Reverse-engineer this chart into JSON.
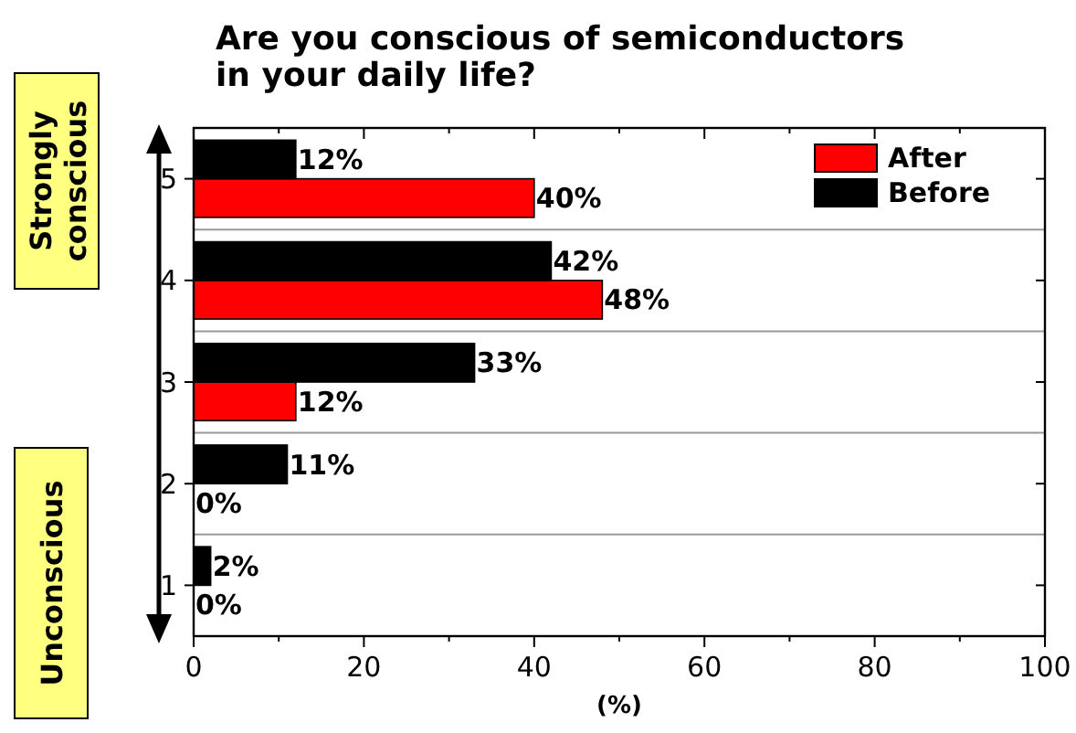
{
  "chart_data": {
    "type": "bar",
    "orientation": "horizontal",
    "title": "Are you conscious of semiconductors in your daily life?",
    "xlabel": "(%)",
    "categories": [
      "5",
      "4",
      "3",
      "2",
      "1"
    ],
    "series": [
      {
        "name": "After",
        "color": "#ff0000",
        "values": [
          40,
          48,
          12,
          0,
          0
        ],
        "value_labels": [
          "40%",
          "48%",
          "12%",
          "0%",
          "0%"
        ]
      },
      {
        "name": "Before",
        "color": "#000000",
        "values": [
          12,
          42,
          33,
          11,
          2
        ],
        "value_labels": [
          "12%",
          "42%",
          "33%",
          "11%",
          "2%"
        ]
      }
    ],
    "xlim": [
      0,
      100
    ],
    "xticks": [
      0,
      20,
      40,
      60,
      80,
      100
    ],
    "grid": "y",
    "legend": "top right",
    "annotations": [
      "Strongly conscious",
      "Unconscious"
    ]
  }
}
